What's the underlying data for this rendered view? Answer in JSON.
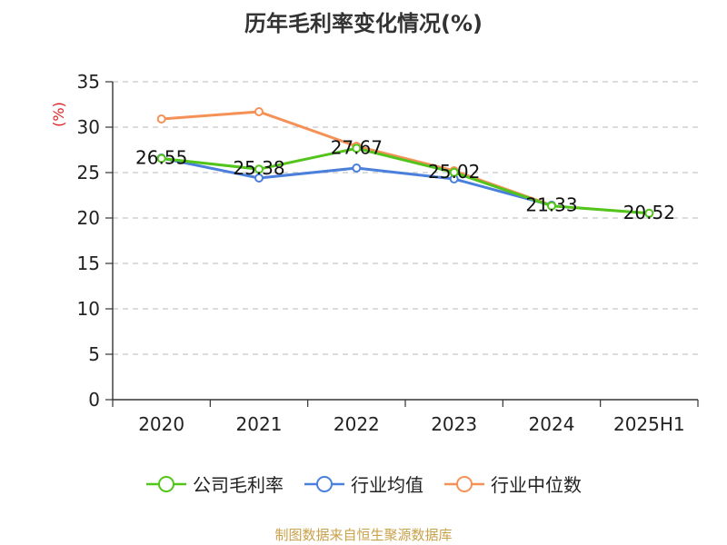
{
  "chart_data": {
    "type": "line",
    "title": "历年毛利率变化情况(%)",
    "ylabel": "(%)",
    "xlabel": "",
    "categories": [
      "2020",
      "2021",
      "2022",
      "2023",
      "2024",
      "2025H1"
    ],
    "ylim": [
      0,
      35
    ],
    "yticks": [
      0,
      5,
      10,
      15,
      20,
      25,
      30,
      35
    ],
    "grid": true,
    "legend_position": "bottom",
    "series": [
      {
        "name": "公司毛利率",
        "color": "#52c41a",
        "values": [
          26.55,
          25.38,
          27.67,
          25.02,
          21.33,
          20.52
        ],
        "labels": [
          "26.55",
          "25.38",
          "27.67",
          "25.02",
          "21.33",
          "20.52"
        ]
      },
      {
        "name": "行业均值",
        "color": "#4a7fdc",
        "values": [
          26.6,
          24.4,
          25.5,
          24.3,
          21.4,
          null
        ]
      },
      {
        "name": "行业中位数",
        "color": "#f59156",
        "values": [
          30.9,
          31.7,
          27.9,
          25.2,
          21.4,
          null
        ]
      }
    ]
  },
  "footer": {
    "source": "制图数据来自恒生聚源数据库",
    "source_color": "#c8a24a"
  },
  "axis_color": "#333333",
  "ylabel_color": "#e02020"
}
